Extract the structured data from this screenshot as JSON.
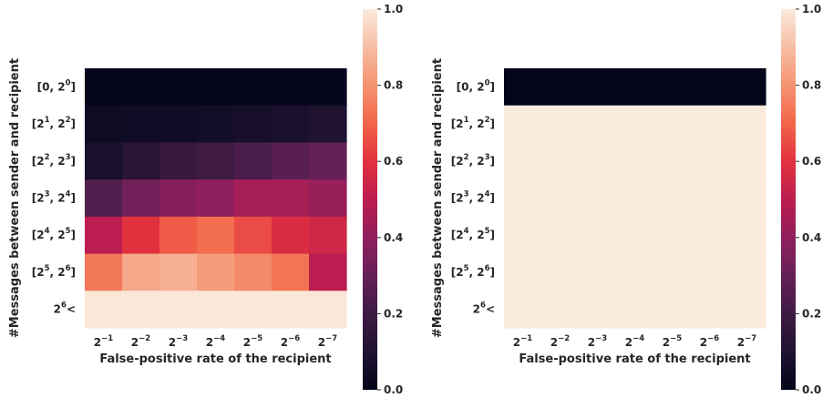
{
  "chart_data": [
    {
      "type": "heatmap",
      "xlabel": "False-positive rate of the recipient",
      "ylabel": "#Messages between sender and recipient",
      "x_categories": [
        {
          "base": "2",
          "exp": "−1"
        },
        {
          "base": "2",
          "exp": "−2"
        },
        {
          "base": "2",
          "exp": "−3"
        },
        {
          "base": "2",
          "exp": "−4"
        },
        {
          "base": "2",
          "exp": "−5"
        },
        {
          "base": "2",
          "exp": "−6"
        },
        {
          "base": "2",
          "exp": "−7"
        }
      ],
      "y_categories": [
        {
          "pre": "[0, 2",
          "exp1": "0",
          "mid": "",
          "exp2": "",
          "post": "]"
        },
        {
          "pre": "[2",
          "exp1": "1",
          "mid": ", 2",
          "exp2": "2",
          "post": "]"
        },
        {
          "pre": "[2",
          "exp1": "2",
          "mid": ", 2",
          "exp2": "3",
          "post": "]"
        },
        {
          "pre": "[2",
          "exp1": "3",
          "mid": ", 2",
          "exp2": "4",
          "post": "]"
        },
        {
          "pre": "[2",
          "exp1": "4",
          "mid": ", 2",
          "exp2": "5",
          "post": "]"
        },
        {
          "pre": "[2",
          "exp1": "5",
          "mid": ", 2",
          "exp2": "6",
          "post": "]"
        },
        {
          "pre": "2",
          "exp1": "6",
          "mid": "<",
          "exp2": "",
          "post": ""
        }
      ],
      "values": [
        [
          0.01,
          0.01,
          0.01,
          0.01,
          0.01,
          0.01,
          0.01
        ],
        [
          0.04,
          0.05,
          0.05,
          0.06,
          0.07,
          0.08,
          0.1
        ],
        [
          0.08,
          0.13,
          0.18,
          0.2,
          0.23,
          0.27,
          0.3
        ],
        [
          0.25,
          0.33,
          0.38,
          0.4,
          0.45,
          0.45,
          0.42
        ],
        [
          0.5,
          0.6,
          0.68,
          0.72,
          0.65,
          0.58,
          0.55
        ],
        [
          0.74,
          0.85,
          0.87,
          0.82,
          0.78,
          0.73,
          0.5
        ],
        [
          0.99,
          0.99,
          0.99,
          0.99,
          0.99,
          0.99,
          0.99
        ]
      ],
      "vmin": 0.0,
      "vmax": 1.0,
      "colorbar_ticks": [
        "0.0",
        "0.2",
        "0.4",
        "0.6",
        "0.8",
        "1.0"
      ],
      "colormap": "rocket"
    },
    {
      "type": "heatmap",
      "xlabel": "False-positive rate of the recipient",
      "ylabel": "#Messages between sender and recipient",
      "x_categories": [
        {
          "base": "2",
          "exp": "−1"
        },
        {
          "base": "2",
          "exp": "−2"
        },
        {
          "base": "2",
          "exp": "−3"
        },
        {
          "base": "2",
          "exp": "−4"
        },
        {
          "base": "2",
          "exp": "−5"
        },
        {
          "base": "2",
          "exp": "−6"
        },
        {
          "base": "2",
          "exp": "−7"
        }
      ],
      "y_categories": [
        {
          "pre": "[0, 2",
          "exp1": "0",
          "mid": "",
          "exp2": "",
          "post": "]"
        },
        {
          "pre": "[2",
          "exp1": "1",
          "mid": ", 2",
          "exp2": "2",
          "post": "]"
        },
        {
          "pre": "[2",
          "exp1": "2",
          "mid": ", 2",
          "exp2": "3",
          "post": "]"
        },
        {
          "pre": "[2",
          "exp1": "3",
          "mid": ", 2",
          "exp2": "4",
          "post": "]"
        },
        {
          "pre": "[2",
          "exp1": "4",
          "mid": ", 2",
          "exp2": "5",
          "post": "]"
        },
        {
          "pre": "[2",
          "exp1": "5",
          "mid": ", 2",
          "exp2": "6",
          "post": "]"
        },
        {
          "pre": "2",
          "exp1": "6",
          "mid": "<",
          "exp2": "",
          "post": ""
        }
      ],
      "values": [
        [
          0.0,
          0.0,
          0.0,
          0.0,
          0.0,
          0.0,
          0.0
        ],
        [
          1.0,
          1.0,
          1.0,
          1.0,
          1.0,
          1.0,
          1.0
        ],
        [
          1.0,
          1.0,
          1.0,
          1.0,
          1.0,
          1.0,
          1.0
        ],
        [
          1.0,
          1.0,
          1.0,
          1.0,
          1.0,
          1.0,
          1.0
        ],
        [
          1.0,
          1.0,
          1.0,
          1.0,
          1.0,
          1.0,
          1.0
        ],
        [
          1.0,
          1.0,
          1.0,
          1.0,
          1.0,
          1.0,
          1.0
        ],
        [
          1.0,
          1.0,
          1.0,
          1.0,
          1.0,
          1.0,
          1.0
        ]
      ],
      "vmin": 0.0,
      "vmax": 1.0,
      "colorbar_ticks": [
        "0.0",
        "0.2",
        "0.4",
        "0.6",
        "0.8",
        "1.0"
      ],
      "colormap": "rocket"
    }
  ]
}
